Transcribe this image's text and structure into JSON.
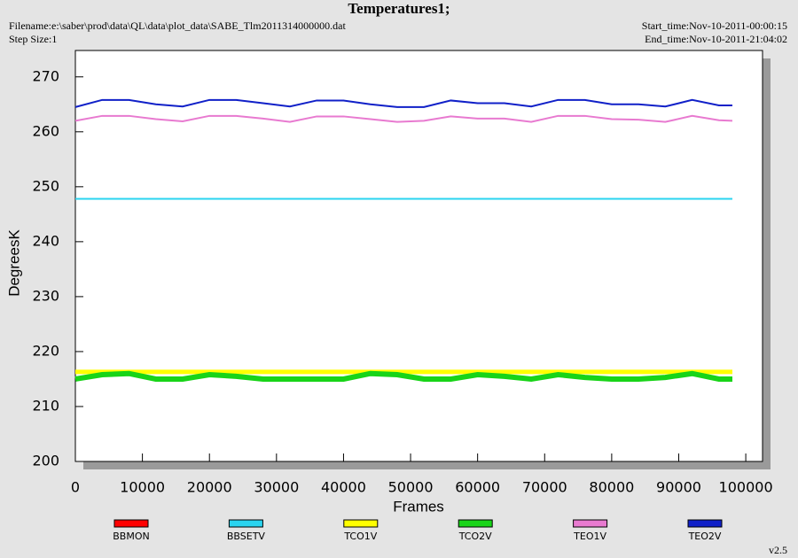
{
  "chart_data": {
    "type": "line",
    "title": "Temperatures1;",
    "filename": "Filename:e:\\saber\\prod\\data\\QL\\data\\plot_data\\SABE_Tlm2011314000000.dat",
    "step_size": "Step Size:1",
    "start_time": "Start_time:Nov-10-2011-00:00:15",
    "end_time": "End_time:Nov-10-2011-21:04:02",
    "version": "v2.5",
    "x_label": "Frames",
    "y_label": "DegreesK",
    "xlim": [
      0,
      102500
    ],
    "ylim": [
      200,
      274.8
    ],
    "xticks": [
      0,
      10000,
      20000,
      30000,
      40000,
      50000,
      60000,
      70000,
      80000,
      90000,
      100000
    ],
    "yticks": [
      200,
      210,
      220,
      230,
      240,
      250,
      260,
      270
    ],
    "x": [
      0,
      4000,
      8000,
      12000,
      16000,
      20000,
      24000,
      28000,
      32000,
      36000,
      40000,
      44000,
      48000,
      52000,
      56000,
      60000,
      64000,
      68000,
      72000,
      76000,
      80000,
      84000,
      88000,
      92000,
      96000,
      98000
    ],
    "series": [
      {
        "name": "BBMON",
        "color": "#ff0000",
        "values": [
          null,
          null,
          null,
          null,
          null,
          null,
          null,
          null,
          null,
          null,
          null,
          null,
          null,
          null,
          null,
          null,
          null,
          null,
          null,
          null,
          null,
          null,
          null,
          null,
          null,
          null
        ]
      },
      {
        "name": "BBSETV",
        "color": "#2ad4f0",
        "values": [
          247.8,
          247.8,
          247.8,
          247.8,
          247.8,
          247.8,
          247.8,
          247.8,
          247.8,
          247.8,
          247.8,
          247.8,
          247.8,
          247.8,
          247.8,
          247.8,
          247.8,
          247.8,
          247.8,
          247.8,
          247.8,
          247.8,
          247.8,
          247.8,
          247.8,
          247.8
        ]
      },
      {
        "name": "TCO1V",
        "color": "#ffff00",
        "values": [
          216.3,
          216.3,
          216.3,
          216.3,
          216.3,
          216.3,
          216.3,
          216.3,
          216.3,
          216.3,
          216.3,
          216.3,
          216.3,
          216.3,
          216.3,
          216.3,
          216.3,
          216.3,
          216.3,
          216.3,
          216.3,
          216.3,
          216.3,
          216.3,
          216.3,
          216.3
        ]
      },
      {
        "name": "TCO2V",
        "color": "#18d418",
        "values": [
          215,
          215.8,
          216,
          215,
          215,
          215.8,
          215.5,
          215,
          215,
          215,
          215,
          216,
          215.8,
          215,
          215,
          215.8,
          215.5,
          215,
          215.8,
          215.3,
          215,
          215,
          215.3,
          216,
          215,
          215
        ]
      },
      {
        "name": "TEO1V",
        "color": "#e87ad0",
        "values": [
          262,
          262.9,
          262.9,
          262.3,
          261.9,
          262.9,
          262.9,
          262.4,
          261.8,
          262.8,
          262.8,
          262.3,
          261.8,
          262,
          262.8,
          262.4,
          262.4,
          261.8,
          262.9,
          262.9,
          262.3,
          262.2,
          261.8,
          262.9,
          262.1,
          262
        ]
      },
      {
        "name": "TEO2V",
        "color": "#1020c8",
        "values": [
          264.5,
          265.8,
          265.8,
          265,
          264.6,
          265.8,
          265.8,
          265.2,
          264.6,
          265.7,
          265.7,
          265,
          264.5,
          264.5,
          265.7,
          265.2,
          265.2,
          264.6,
          265.8,
          265.8,
          265,
          265,
          264.6,
          265.8,
          264.8,
          264.8
        ]
      }
    ]
  }
}
